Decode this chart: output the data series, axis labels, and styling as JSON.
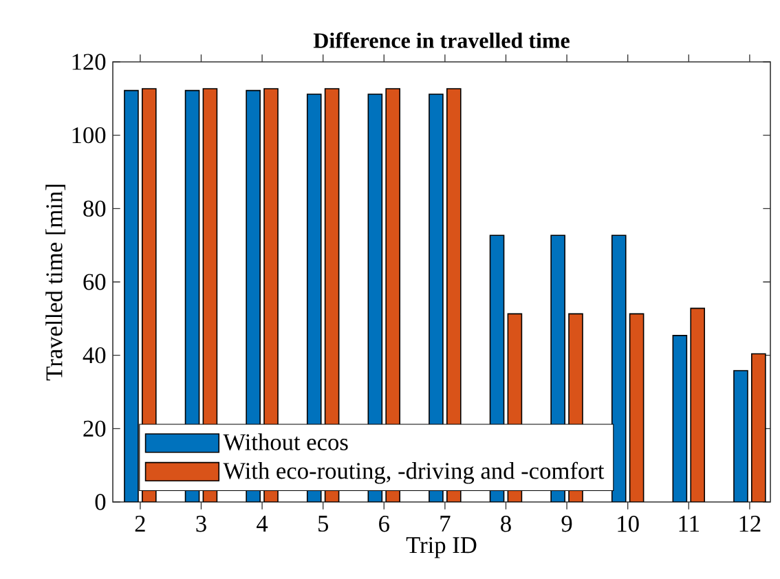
{
  "chart_data": {
    "type": "bar",
    "title": "Difference in travelled time",
    "xlabel": "Trip ID",
    "ylabel": "Travelled time [min]",
    "categories": [
      "2",
      "3",
      "4",
      "5",
      "6",
      "7",
      "8",
      "9",
      "10",
      "11",
      "12"
    ],
    "series": [
      {
        "name": "Without ecos",
        "color": "#0072bd",
        "values": [
          112.2,
          112.2,
          112.2,
          111.2,
          111.2,
          111.2,
          72.7,
          72.7,
          72.7,
          45.4,
          35.8
        ]
      },
      {
        "name": "With eco-routing, -driving and -comfort",
        "color": "#d95319",
        "values": [
          112.7,
          112.7,
          112.7,
          112.7,
          112.7,
          112.7,
          51.3,
          51.3,
          51.3,
          52.8,
          40.4
        ]
      }
    ],
    "ylim": [
      0,
      120
    ],
    "yticks": [
      0,
      20,
      40,
      60,
      80,
      100,
      120
    ],
    "grid": false,
    "legend": "bottom left"
  }
}
